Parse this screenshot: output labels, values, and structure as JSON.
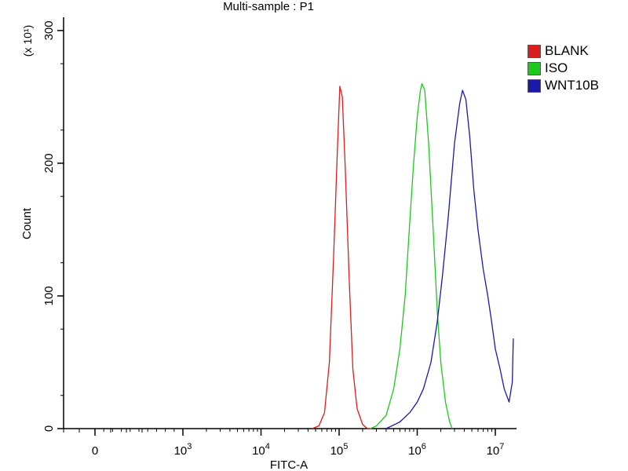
{
  "chart_data": {
    "type": "line",
    "title": "Multi-sample : P1",
    "xlabel": "FITC-A",
    "ylabel": "Count",
    "y_multiplier": "(x 10¹)",
    "xscale": "log",
    "xlim": [
      -50,
      17000000
    ],
    "ylim": [
      0,
      310
    ],
    "x_tick_labels": [
      {
        "value": 0,
        "base": "0",
        "exp": ""
      },
      {
        "value": 1000,
        "base": "10",
        "exp": "3"
      },
      {
        "value": 10000,
        "base": "10",
        "exp": "4"
      },
      {
        "value": 100000,
        "base": "10",
        "exp": "5"
      },
      {
        "value": 1000000,
        "base": "10",
        "exp": "6"
      },
      {
        "value": 10000000,
        "base": "10",
        "exp": "7"
      }
    ],
    "y_ticks": [
      {
        "value": 0,
        "label": "0"
      },
      {
        "value": 100,
        "label": "100"
      },
      {
        "value": 200,
        "label": "200"
      },
      {
        "value": 300,
        "label": "300"
      }
    ],
    "legend_position": "right",
    "series": [
      {
        "name": "BLANK",
        "color": "#d81e1e",
        "x": [
          45000,
          55000,
          65000,
          75000,
          85000,
          95000,
          102000,
          110000,
          120000,
          135000,
          150000,
          170000,
          200000,
          230000,
          260000
        ],
        "y": [
          0,
          2,
          12,
          50,
          130,
          210,
          258,
          250,
          195,
          110,
          45,
          15,
          3,
          0,
          0
        ]
      },
      {
        "name": "ISO",
        "color": "#1ec81e",
        "x": [
          250000,
          300000,
          400000,
          500000,
          600000,
          700000,
          800000,
          900000,
          1000000,
          1100000,
          1150000,
          1250000,
          1400000,
          1600000,
          1800000,
          2000000,
          2300000,
          2600000,
          2800000
        ],
        "y": [
          0,
          2,
          10,
          30,
          60,
          100,
          155,
          200,
          235,
          255,
          260,
          255,
          215,
          150,
          90,
          50,
          20,
          5,
          0
        ]
      },
      {
        "name": "WNT10B",
        "color": "#1a1aa8",
        "x": [
          400000,
          600000,
          800000,
          1000000,
          1200000,
          1500000,
          1800000,
          2100000,
          2500000,
          3000000,
          3500000,
          3800000,
          4200000,
          4700000,
          5300000,
          6000000,
          7000000,
          8000000,
          9000000,
          10000000,
          11500000,
          13000000,
          15000000,
          16500000,
          17000000
        ],
        "y": [
          0,
          5,
          12,
          20,
          30,
          50,
          80,
          115,
          160,
          215,
          245,
          255,
          248,
          220,
          180,
          150,
          120,
          100,
          80,
          60,
          45,
          30,
          20,
          35,
          68
        ]
      }
    ]
  }
}
